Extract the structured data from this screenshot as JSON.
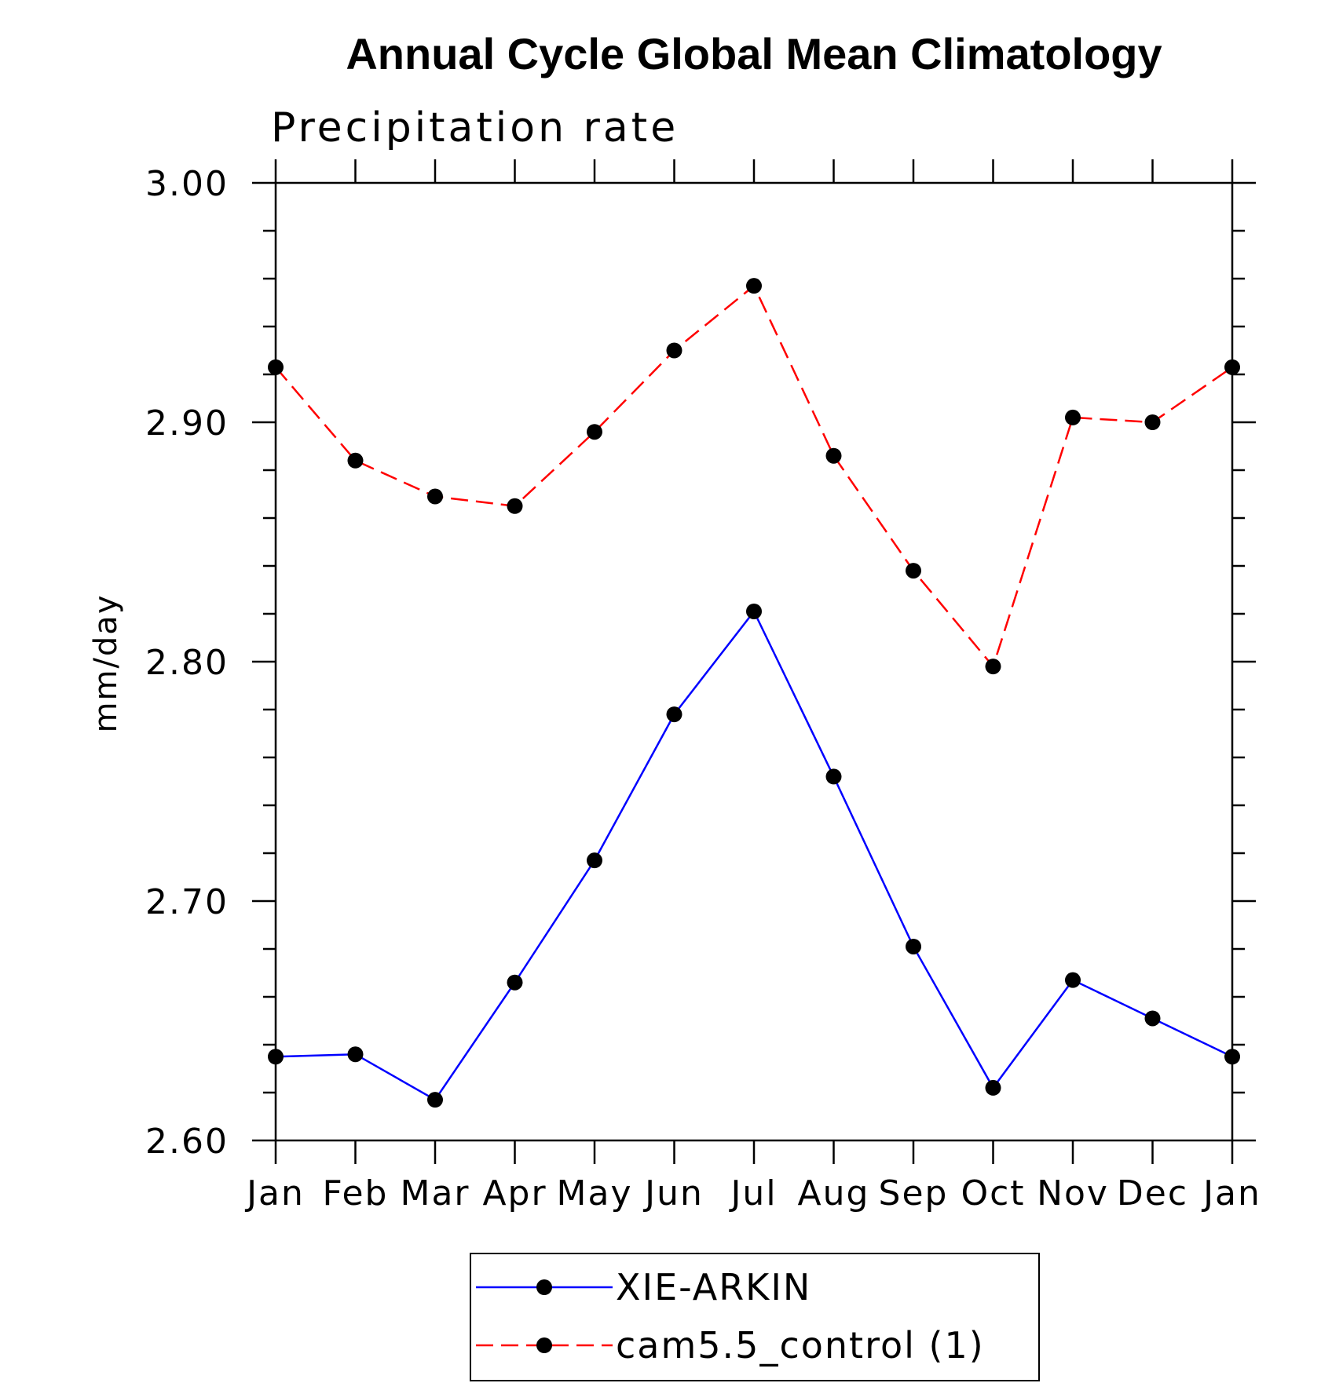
{
  "chart_data": {
    "type": "line",
    "title": "Annual Cycle Global Mean Climatology",
    "subtitle": "Precipitation rate",
    "xlabel": "",
    "ylabel": "mm/day",
    "categories": [
      "Jan",
      "Feb",
      "Mar",
      "Apr",
      "May",
      "Jun",
      "Jul",
      "Aug",
      "Sep",
      "Oct",
      "Nov",
      "Dec",
      "Jan"
    ],
    "ylim": [
      2.6,
      3.0
    ],
    "yticks": [
      "2.60",
      "2.70",
      "2.80",
      "2.90",
      "3.00"
    ],
    "y_major_step": 0.1,
    "y_minor_step": 0.02,
    "grid": false,
    "legend_position": "bottom-center",
    "series": [
      {
        "name": "XIE-ARKIN",
        "color": "#0000ff",
        "dash": "solid",
        "marker": "filled-circle",
        "values": [
          2.635,
          2.636,
          2.617,
          2.666,
          2.717,
          2.778,
          2.821,
          2.752,
          2.681,
          2.622,
          2.667,
          2.651,
          2.635
        ]
      },
      {
        "name": "cam5.5_control (1)",
        "color": "#ff0000",
        "dash": "dashed",
        "marker": "filled-circle",
        "values": [
          2.923,
          2.884,
          2.869,
          2.865,
          2.896,
          2.93,
          2.957,
          2.886,
          2.838,
          2.798,
          2.902,
          2.9,
          2.923
        ]
      }
    ]
  }
}
